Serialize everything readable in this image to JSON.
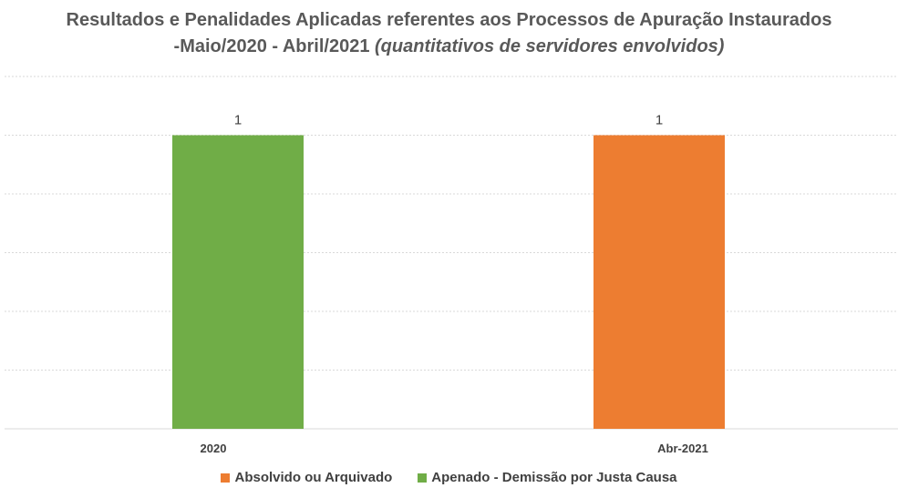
{
  "chart_data": {
    "type": "bar",
    "title_line1": "Resultados e Penalidades Aplicadas referentes aos Processos de Apuração Instaurados",
    "title_line2_prefix": "-Maio/2020 - Abril/2021 ",
    "title_line2_italic": "(quantitativos de servidores envolvidos)",
    "categories": [
      "2020",
      "Abr-2021"
    ],
    "series": [
      {
        "name": "Absolvido ou Arquivado",
        "color": "#ED7D31",
        "values": [
          0,
          1
        ]
      },
      {
        "name": "Apenado - Demissão por Justa Causa",
        "color": "#70AD47",
        "values": [
          1,
          0
        ]
      }
    ],
    "ylim": [
      0,
      1.2
    ],
    "grid": true,
    "legend_position": "bottom"
  }
}
